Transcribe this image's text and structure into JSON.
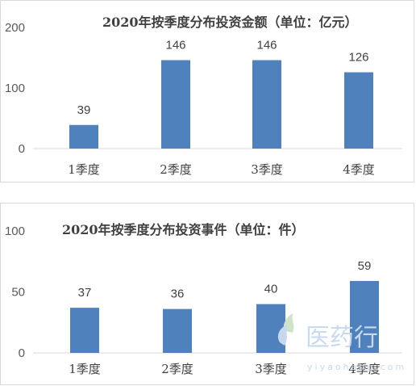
{
  "chart_data": [
    {
      "type": "bar",
      "title": "2020年按季度分布投资金额（单位：亿元）",
      "categories": [
        "1季度",
        "2季度",
        "3季度",
        "4季度"
      ],
      "values": [
        39,
        146,
        146,
        126
      ],
      "yticks": [
        0,
        100,
        200
      ],
      "ylim": [
        0,
        200
      ],
      "grid": false,
      "color": "#4f81bd"
    },
    {
      "type": "bar",
      "title": "2020年按季度分布投资事件（单位：件）",
      "categories": [
        "1季度",
        "2季度",
        "3季度",
        "4季度"
      ],
      "values": [
        37,
        36,
        40,
        59
      ],
      "yticks": [
        0,
        50,
        100
      ],
      "ylim": [
        0,
        100
      ],
      "grid": false,
      "color": "#4f81bd"
    }
  ],
  "watermark": {
    "text": "医药行",
    "sub": "yiyaohang.com"
  }
}
